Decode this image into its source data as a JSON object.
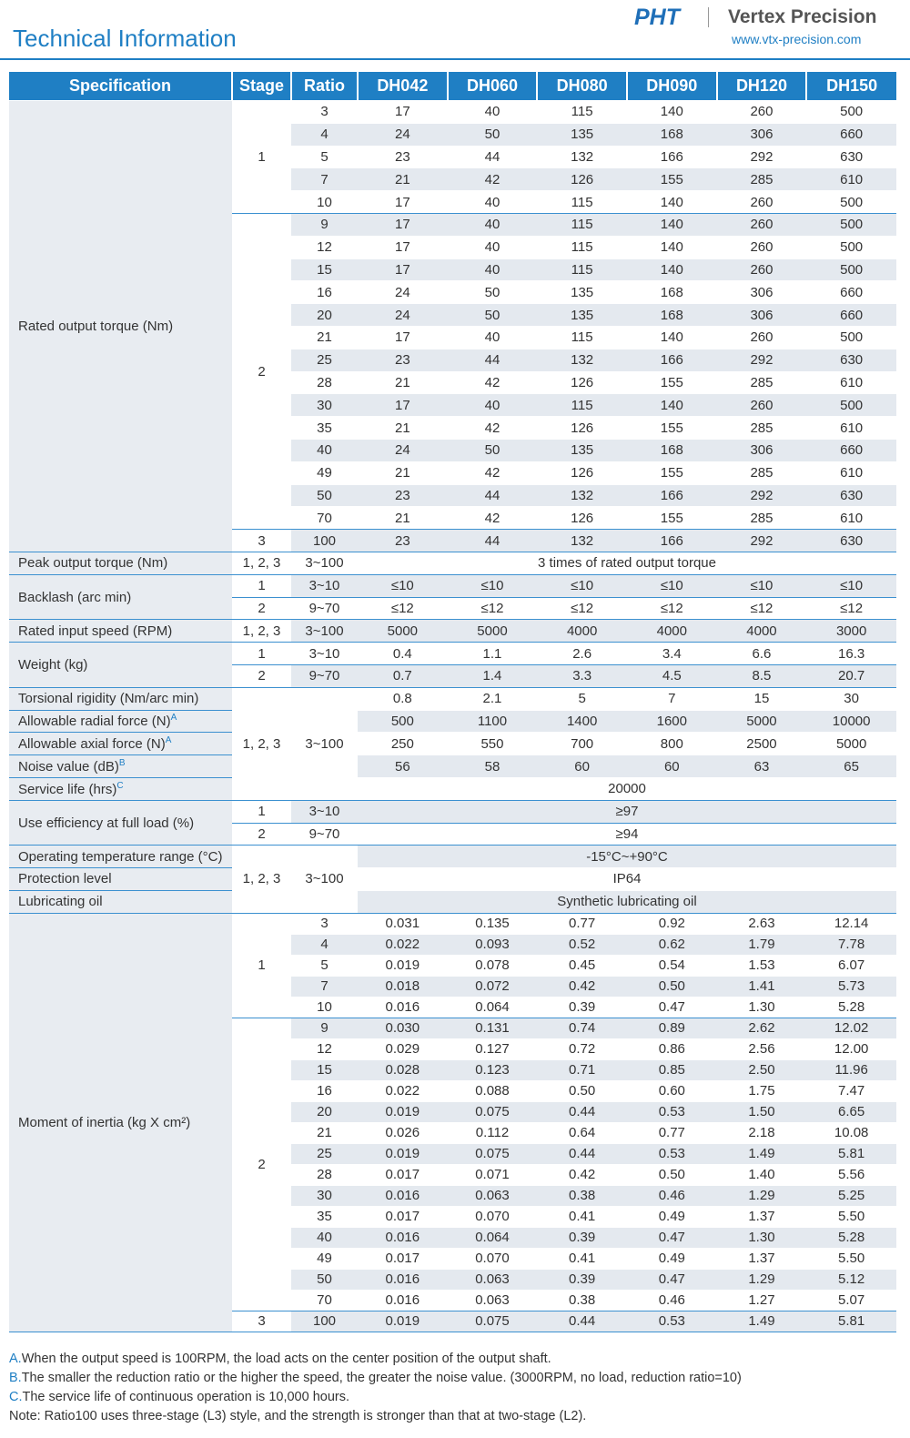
{
  "header": {
    "title": "Technical Information",
    "logo": "PHT",
    "brand": "Vertex Precision",
    "url": "www.vtx-precision.com"
  },
  "table": {
    "columns": [
      "Specification",
      "Stage",
      "Ratio",
      "DH042",
      "DH060",
      "DH080",
      "DH090",
      "DH120",
      "DH150"
    ],
    "blocks": [
      {
        "spec": "Rated output torque (Nm)",
        "stages": [
          {
            "stage": "1",
            "rows": [
              {
                "ratio": "3",
                "values": [
                  "17",
                  "40",
                  "115",
                  "140",
                  "260",
                  "500"
                ]
              },
              {
                "ratio": "4",
                "values": [
                  "24",
                  "50",
                  "135",
                  "168",
                  "306",
                  "660"
                ]
              },
              {
                "ratio": "5",
                "values": [
                  "23",
                  "44",
                  "132",
                  "166",
                  "292",
                  "630"
                ]
              },
              {
                "ratio": "7",
                "values": [
                  "21",
                  "42",
                  "126",
                  "155",
                  "285",
                  "610"
                ]
              },
              {
                "ratio": "10",
                "values": [
                  "17",
                  "40",
                  "115",
                  "140",
                  "260",
                  "500"
                ]
              }
            ]
          },
          {
            "stage": "2",
            "rows": [
              {
                "ratio": "9",
                "values": [
                  "17",
                  "40",
                  "115",
                  "140",
                  "260",
                  "500"
                ]
              },
              {
                "ratio": "12",
                "values": [
                  "17",
                  "40",
                  "115",
                  "140",
                  "260",
                  "500"
                ]
              },
              {
                "ratio": "15",
                "values": [
                  "17",
                  "40",
                  "115",
                  "140",
                  "260",
                  "500"
                ]
              },
              {
                "ratio": "16",
                "values": [
                  "24",
                  "50",
                  "135",
                  "168",
                  "306",
                  "660"
                ]
              },
              {
                "ratio": "20",
                "values": [
                  "24",
                  "50",
                  "135",
                  "168",
                  "306",
                  "660"
                ]
              },
              {
                "ratio": "21",
                "values": [
                  "17",
                  "40",
                  "115",
                  "140",
                  "260",
                  "500"
                ]
              },
              {
                "ratio": "25",
                "values": [
                  "23",
                  "44",
                  "132",
                  "166",
                  "292",
                  "630"
                ]
              },
              {
                "ratio": "28",
                "values": [
                  "21",
                  "42",
                  "126",
                  "155",
                  "285",
                  "610"
                ]
              },
              {
                "ratio": "30",
                "values": [
                  "17",
                  "40",
                  "115",
                  "140",
                  "260",
                  "500"
                ]
              },
              {
                "ratio": "35",
                "values": [
                  "21",
                  "42",
                  "126",
                  "155",
                  "285",
                  "610"
                ]
              },
              {
                "ratio": "40",
                "values": [
                  "24",
                  "50",
                  "135",
                  "168",
                  "306",
                  "660"
                ]
              },
              {
                "ratio": "49",
                "values": [
                  "21",
                  "42",
                  "126",
                  "155",
                  "285",
                  "610"
                ]
              },
              {
                "ratio": "50",
                "values": [
                  "23",
                  "44",
                  "132",
                  "166",
                  "292",
                  "630"
                ]
              },
              {
                "ratio": "70",
                "values": [
                  "21",
                  "42",
                  "126",
                  "155",
                  "285",
                  "610"
                ]
              }
            ]
          },
          {
            "stage": "3",
            "rows": [
              {
                "ratio": "100",
                "values": [
                  "23",
                  "44",
                  "132",
                  "166",
                  "292",
                  "630"
                ]
              }
            ]
          }
        ]
      },
      {
        "spec": "Peak output torque (Nm)",
        "stages": [
          {
            "stage": "1, 2, 3",
            "rows": [
              {
                "ratio": "3~100",
                "text": "3 times of rated output torque"
              }
            ]
          }
        ]
      },
      {
        "spec": "Backlash (arc min)",
        "stages": [
          {
            "stage": "1",
            "rows": [
              {
                "ratio": "3~10",
                "values": [
                  "≤10",
                  "≤10",
                  "≤10",
                  "≤10",
                  "≤10",
                  "≤10"
                ]
              }
            ]
          },
          {
            "stage": "2",
            "rows": [
              {
                "ratio": "9~70",
                "values": [
                  "≤12",
                  "≤12",
                  "≤12",
                  "≤12",
                  "≤12",
                  "≤12"
                ]
              }
            ]
          }
        ]
      },
      {
        "spec": "Rated input speed (RPM)",
        "stages": [
          {
            "stage": "1, 2, 3",
            "rows": [
              {
                "ratio": "3~100",
                "values": [
                  "5000",
                  "5000",
                  "4000",
                  "4000",
                  "4000",
                  "3000"
                ]
              }
            ]
          }
        ]
      },
      {
        "spec": "Weight (kg)",
        "stages": [
          {
            "stage": "1",
            "rows": [
              {
                "ratio": "3~10",
                "values": [
                  "0.4",
                  "1.1",
                  "2.6",
                  "3.4",
                  "6.6",
                  "16.3"
                ]
              }
            ]
          },
          {
            "stage": "2",
            "rows": [
              {
                "ratio": "9~70",
                "values": [
                  "0.7",
                  "1.4",
                  "3.3",
                  "4.5",
                  "8.5",
                  "20.7"
                ]
              }
            ]
          }
        ]
      },
      {
        "stage": "1, 2, 3",
        "ratio": "3~100",
        "rows": [
          {
            "spec": "Torsional rigidity (Nm/arc min)",
            "values": [
              "0.8",
              "2.1",
              "5",
              "7",
              "15",
              "30"
            ]
          },
          {
            "spec": "Allowable radial force (N)",
            "note": "A",
            "values": [
              "500",
              "1100",
              "1400",
              "1600",
              "5000",
              "10000"
            ]
          },
          {
            "spec": "Allowable axial force (N)",
            "note": "A",
            "values": [
              "250",
              "550",
              "700",
              "800",
              "2500",
              "5000"
            ]
          },
          {
            "spec": "Noise value (dB)",
            "note": "B",
            "values": [
              "56",
              "58",
              "60",
              "60",
              "63",
              "65"
            ]
          },
          {
            "spec": "Service life (hrs)",
            "note": "C",
            "text": "20000"
          }
        ]
      },
      {
        "spec": "Use efficiency at full load (%)",
        "stages": [
          {
            "stage": "1",
            "rows": [
              {
                "ratio": "3~10",
                "text": "≥97"
              }
            ]
          },
          {
            "stage": "2",
            "rows": [
              {
                "ratio": "9~70",
                "text": "≥94"
              }
            ]
          }
        ]
      },
      {
        "stage": "1, 2, 3",
        "ratio": "3~100",
        "rows": [
          {
            "spec": "Operating temperature range (°C)",
            "text": "-15°C~+90°C"
          },
          {
            "spec": "Protection level",
            "text": "IP64"
          },
          {
            "spec": "Lubricating oil",
            "text": "Synthetic lubricating oil"
          }
        ]
      },
      {
        "spec": "Moment of inertia (kg X cm²)",
        "stages": [
          {
            "stage": "1",
            "rows": [
              {
                "ratio": "3",
                "values": [
                  "0.031",
                  "0.135",
                  "0.77",
                  "0.92",
                  "2.63",
                  "12.14"
                ]
              },
              {
                "ratio": "4",
                "values": [
                  "0.022",
                  "0.093",
                  "0.52",
                  "0.62",
                  "1.79",
                  "7.78"
                ]
              },
              {
                "ratio": "5",
                "values": [
                  "0.019",
                  "0.078",
                  "0.45",
                  "0.54",
                  "1.53",
                  "6.07"
                ]
              },
              {
                "ratio": "7",
                "values": [
                  "0.018",
                  "0.072",
                  "0.42",
                  "0.50",
                  "1.41",
                  "5.73"
                ]
              },
              {
                "ratio": "10",
                "values": [
                  "0.016",
                  "0.064",
                  "0.39",
                  "0.47",
                  "1.30",
                  "5.28"
                ]
              }
            ]
          },
          {
            "stage": "2",
            "rows": [
              {
                "ratio": "9",
                "values": [
                  "0.030",
                  "0.131",
                  "0.74",
                  "0.89",
                  "2.62",
                  "12.02"
                ]
              },
              {
                "ratio": "12",
                "values": [
                  "0.029",
                  "0.127",
                  "0.72",
                  "0.86",
                  "2.56",
                  "12.00"
                ]
              },
              {
                "ratio": "15",
                "values": [
                  "0.028",
                  "0.123",
                  "0.71",
                  "0.85",
                  "2.50",
                  "11.96"
                ]
              },
              {
                "ratio": "16",
                "values": [
                  "0.022",
                  "0.088",
                  "0.50",
                  "0.60",
                  "1.75",
                  "7.47"
                ]
              },
              {
                "ratio": "20",
                "values": [
                  "0.019",
                  "0.075",
                  "0.44",
                  "0.53",
                  "1.50",
                  "6.65"
                ]
              },
              {
                "ratio": "21",
                "values": [
                  "0.026",
                  "0.112",
                  "0.64",
                  "0.77",
                  "2.18",
                  "10.08"
                ]
              },
              {
                "ratio": "25",
                "values": [
                  "0.019",
                  "0.075",
                  "0.44",
                  "0.53",
                  "1.49",
                  "5.81"
                ]
              },
              {
                "ratio": "28",
                "values": [
                  "0.017",
                  "0.071",
                  "0.42",
                  "0.50",
                  "1.40",
                  "5.56"
                ]
              },
              {
                "ratio": "30",
                "values": [
                  "0.016",
                  "0.063",
                  "0.38",
                  "0.46",
                  "1.29",
                  "5.25"
                ]
              },
              {
                "ratio": "35",
                "values": [
                  "0.017",
                  "0.070",
                  "0.41",
                  "0.49",
                  "1.37",
                  "5.50"
                ]
              },
              {
                "ratio": "40",
                "values": [
                  "0.016",
                  "0.064",
                  "0.39",
                  "0.47",
                  "1.30",
                  "5.28"
                ]
              },
              {
                "ratio": "49",
                "values": [
                  "0.017",
                  "0.070",
                  "0.41",
                  "0.49",
                  "1.37",
                  "5.50"
                ]
              },
              {
                "ratio": "50",
                "values": [
                  "0.016",
                  "0.063",
                  "0.39",
                  "0.47",
                  "1.29",
                  "5.12"
                ]
              },
              {
                "ratio": "70",
                "values": [
                  "0.016",
                  "0.063",
                  "0.38",
                  "0.46",
                  "1.27",
                  "5.07"
                ]
              }
            ]
          },
          {
            "stage": "3",
            "rows": [
              {
                "ratio": "100",
                "values": [
                  "0.019",
                  "0.075",
                  "0.44",
                  "0.53",
                  "1.49",
                  "5.81"
                ]
              }
            ]
          }
        ]
      }
    ]
  },
  "footnotes": [
    {
      "marker": "A.",
      "text": "When the output speed is 100RPM, the load acts on the center position of the output shaft."
    },
    {
      "marker": "B.",
      "text": "The smaller the reduction ratio or the higher the speed, the greater the noise value. (3000RPM, no load, reduction ratio=10)"
    },
    {
      "marker": "C.",
      "text": "The service life of continuous operation is 10,000 hours."
    }
  ],
  "note": "Note: Ratio100 uses three-stage (L3) style, and the strength is stronger than that at two-stage (L2)."
}
